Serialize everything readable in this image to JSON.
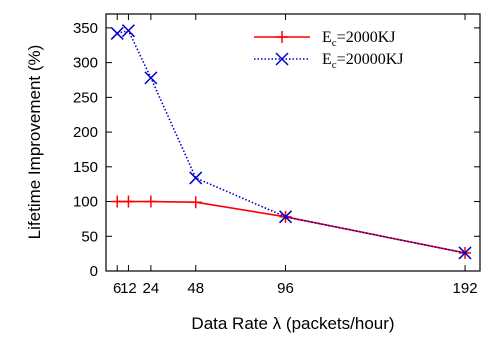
{
  "chart_data": {
    "type": "line",
    "xlabel": "Data Rate λ (packets/hour)",
    "ylabel": "Lifetime Improvement (%)",
    "xlim": [
      0,
      200
    ],
    "ylim": [
      0,
      370
    ],
    "x_ticks": [
      6,
      12,
      24,
      48,
      96,
      192
    ],
    "x_tick_labels": [
      "6",
      "12",
      "24",
      "48",
      "96",
      "192"
    ],
    "y_ticks": [
      0,
      50,
      100,
      150,
      200,
      250,
      300,
      350
    ],
    "y_tick_labels": [
      "0",
      "50",
      "100",
      "150",
      "200",
      "250",
      "300",
      "350"
    ],
    "grid": false,
    "legend_position": "top-right",
    "series": [
      {
        "label_main": "E",
        "label_sub": "c",
        "label_rest": "=2000KJ",
        "color": "#ff0000",
        "line_style": "solid",
        "marker": "plus",
        "x": [
          6,
          12,
          24,
          48,
          96,
          192
        ],
        "y": [
          100,
          100,
          100,
          99,
          78,
          26
        ]
      },
      {
        "label_main": "E",
        "label_sub": "c",
        "label_rest": "=20000KJ",
        "color": "#0000cc",
        "line_style": "dotted",
        "marker": "x",
        "x": [
          6,
          12,
          24,
          48,
          96,
          192
        ],
        "y": [
          342,
          346,
          278,
          134,
          78,
          26
        ]
      }
    ]
  }
}
